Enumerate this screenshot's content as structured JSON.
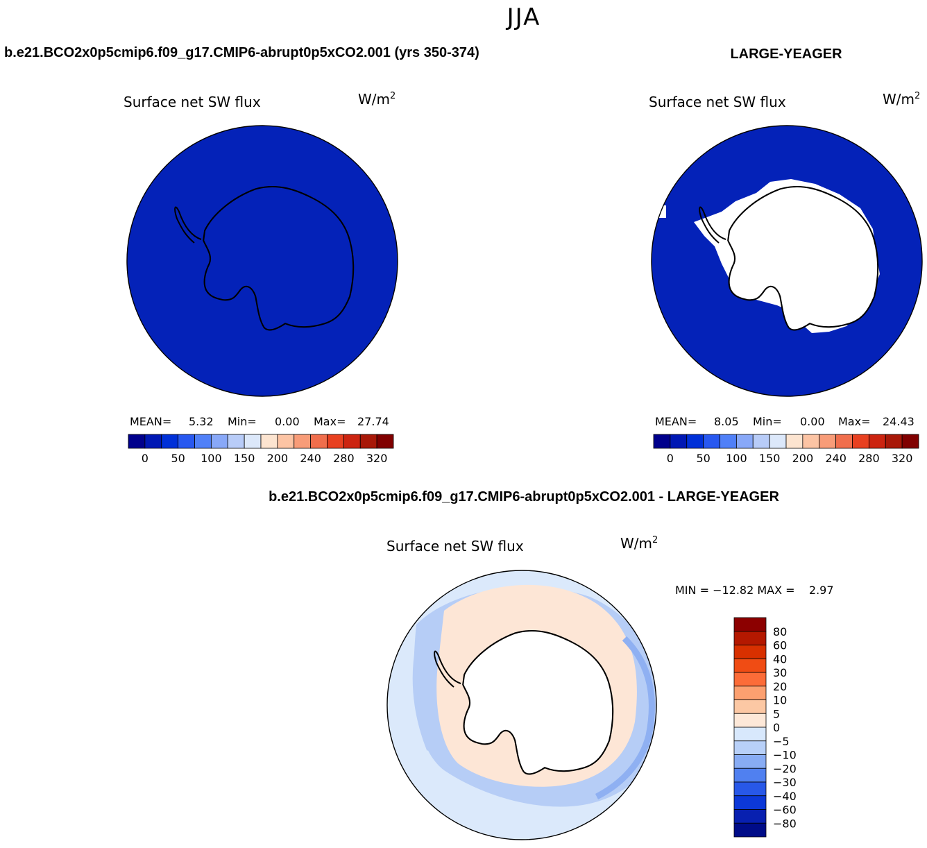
{
  "page": {
    "season": "JJA",
    "left_title": "b.e21.BCO2x0p5cmip6.f09_g17.CMIP6-abrupt0p5xCO2.001 (yrs 350-374)",
    "right_title": "LARGE-YEAGER",
    "diff_title": "b.e21.BCO2x0p5cmip6.f09_g17.CMIP6-abrupt0p5xCO2.001 - LARGE-YEAGER"
  },
  "panels": {
    "left": {
      "variable": "Surface net SW flux",
      "units_main": "W/m",
      "units_sup": "2",
      "mean_label": "MEAN=",
      "mean_value": "5.32",
      "min_label": "Min=",
      "min_value": "0.00",
      "max_label": "Max=",
      "max_value": "27.74"
    },
    "right": {
      "variable": "Surface net SW flux",
      "units_main": "W/m",
      "units_sup": "2",
      "mean_label": "MEAN=",
      "mean_value": "8.05",
      "min_label": "Min=",
      "min_value": "0.00",
      "max_label": "Max=",
      "max_value": "24.43"
    },
    "diff": {
      "variable": "Surface net SW flux",
      "units_main": "W/m",
      "units_sup": "2",
      "minmax_text": "MIN = −12.82 MAX =    2.97"
    }
  },
  "colorbars": {
    "abs": {
      "colors": [
        "#00008c",
        "#0018b4",
        "#0030d8",
        "#2858f0",
        "#5080f8",
        "#88a8f8",
        "#b8ccf8",
        "#dce8fa",
        "#fce4d0",
        "#fcc4a4",
        "#f89c78",
        "#f06e4c",
        "#e84020",
        "#cc2410",
        "#a81808",
        "#800000"
      ],
      "ticks": [
        "0",
        "50",
        "100",
        "150",
        "200",
        "240",
        "280",
        "320"
      ]
    },
    "diff": {
      "colors_top_to_bottom": [
        "#8c0000",
        "#b41800",
        "#d83000",
        "#f04c14",
        "#fc6c38",
        "#fca070",
        "#fcc8a4",
        "#fde8d8",
        "#d8e8fc",
        "#b8d0f8",
        "#88acf4",
        "#5080f0",
        "#2858e8",
        "#0c38d8",
        "#0820b0",
        "#000c88"
      ],
      "labels_top_to_bottom": [
        "80",
        "60",
        "40",
        "30",
        "20",
        "10",
        "5",
        "0",
        "−5",
        "−10",
        "−20",
        "−30",
        "−40",
        "−60",
        "−80"
      ]
    }
  },
  "map_colors": {
    "ocean_low": "#0422b8",
    "land": "#ffffff",
    "diff_positive": "#fde6d6",
    "diff_negative_light": "#dbe9fb",
    "diff_negative_mid": "#b6cdf6",
    "diff_negative_strong": "#8fb0f2"
  }
}
